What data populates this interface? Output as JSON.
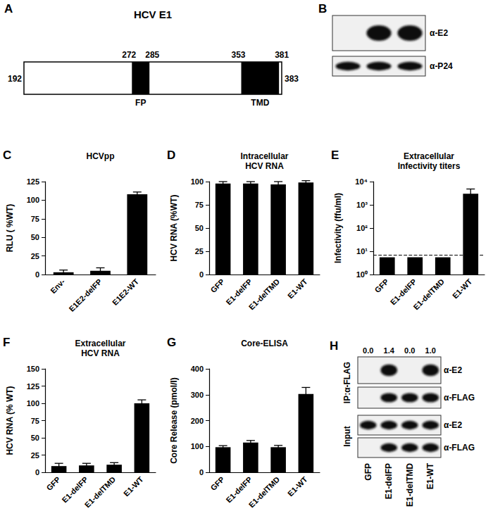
{
  "diagram": {
    "panel": "A",
    "title": "HCV E1",
    "start": 192,
    "end": 383,
    "domains": [
      {
        "label": "FP",
        "start": 272,
        "end": 285
      },
      {
        "label": "TMD",
        "start": 353,
        "end": 381
      }
    ]
  },
  "blots": [
    {
      "panel": "B",
      "groups": [
        {
          "rows": [
            {
              "label": "α-E2",
              "bands": [
                false,
                true,
                true
              ]
            },
            {
              "label": "α-P24",
              "bands": [
                true,
                true,
                true
              ]
            }
          ]
        }
      ]
    },
    {
      "panel": "H",
      "lanes": [
        "GFP",
        "E1-delFP",
        "E1-delTMD",
        "E1-WT"
      ],
      "quantification": [
        "0.0",
        "1.4",
        "0.0",
        "1.0"
      ],
      "groups": [
        {
          "label": "IP:α-FLAG",
          "rows": [
            {
              "label": "α-E2",
              "bands": [
                false,
                true,
                false,
                true
              ]
            },
            {
              "label": "α-FLAG",
              "bands": [
                false,
                true,
                true,
                true
              ]
            }
          ]
        },
        {
          "label": "Input",
          "rows": [
            {
              "label": "α-E2",
              "bands": [
                true,
                true,
                true,
                true
              ]
            },
            {
              "label": "α-FLAG",
              "bands": [
                false,
                true,
                true,
                true
              ]
            }
          ]
        }
      ]
    }
  ],
  "chart_data": [
    {
      "panel": "C",
      "type": "bar",
      "title": "HCVpp",
      "y_label": "RLU ( %WT)",
      "categories": [
        "Env-",
        "E1E2-delFP",
        "E1E2-WT"
      ],
      "values": [
        3,
        5,
        108
      ],
      "errors": [
        3,
        4,
        3
      ],
      "color": "#000000",
      "ylim": [
        0,
        125
      ],
      "yticks": [
        0,
        25,
        50,
        75,
        100,
        125
      ],
      "grid": false
    },
    {
      "panel": "D",
      "type": "bar",
      "title": "Intracellular\nHCV RNA",
      "y_label": "HCV RNA (%WT)",
      "categories": [
        "GFP",
        "E1-delFP",
        "E1-delTMD",
        "E1-WT"
      ],
      "values": [
        98,
        98,
        97,
        99
      ],
      "errors": [
        2,
        2,
        3,
        2
      ],
      "color": "#000000",
      "ylim": [
        0,
        100
      ],
      "yticks": [
        0,
        25,
        50,
        75,
        100
      ],
      "grid": false
    },
    {
      "panel": "E",
      "type": "bar",
      "title": "Extracellular\nInfectivity titers",
      "y_label": "Infectivity (ffu/ml)",
      "categories": [
        "GFP",
        "E1-delFP",
        "E1-delTMD",
        "E1-WT"
      ],
      "values": [
        5.5,
        5.5,
        5.5,
        3000
      ],
      "errors": [
        0,
        0,
        0,
        1800
      ],
      "reference_line": 7,
      "log": "y",
      "color": "#000000",
      "ylim": [
        1,
        10000
      ],
      "yticks": [
        {
          "value": 1,
          "label": "10⁰"
        },
        {
          "value": 10,
          "label": "10¹"
        },
        {
          "value": 100,
          "label": "10²"
        },
        {
          "value": 1000,
          "label": "10³"
        },
        {
          "value": 10000,
          "label": "10⁴"
        }
      ],
      "grid": false
    },
    {
      "panel": "F",
      "type": "bar",
      "title": "Extracellular\nHCV RNA",
      "y_label": "HCV RNA (% WT)",
      "categories": [
        "GFP",
        "E1-delFP",
        "E1-delTMD",
        "E1-WT"
      ],
      "values": [
        9,
        10,
        11,
        100
      ],
      "errors": [
        4,
        3,
        3,
        5
      ],
      "color": "#000000",
      "ylim": [
        0,
        150
      ],
      "yticks": [
        0,
        25,
        50,
        75,
        100,
        125,
        150
      ],
      "grid": false
    },
    {
      "panel": "G",
      "type": "bar",
      "title": "Core-ELISA",
      "y_label": "Core Release (pmol/l)",
      "categories": [
        "GFP",
        "E1-delFP",
        "E1-delTMD",
        "E1-WT"
      ],
      "values": [
        97,
        115,
        97,
        303
      ],
      "errors": [
        6,
        8,
        7,
        25
      ],
      "color": "#000000",
      "ylim": [
        0,
        400
      ],
      "yticks": [
        0,
        100,
        200,
        300,
        400
      ],
      "grid": false
    }
  ]
}
